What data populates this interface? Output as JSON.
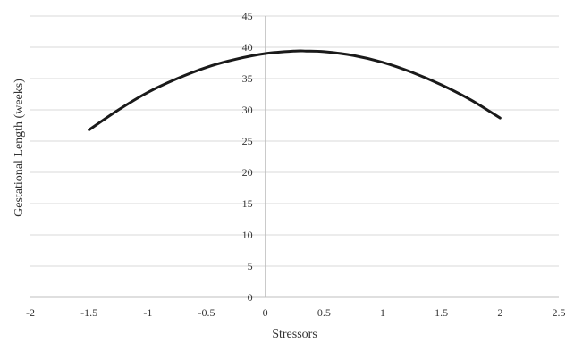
{
  "chart_data": {
    "type": "line",
    "title": "",
    "xlabel": "Stressors",
    "ylabel": "Gestational Length (weeks)",
    "xlim": [
      -2,
      2.5
    ],
    "ylim": [
      0,
      45
    ],
    "x_ticks": [
      "-2",
      "-1.5",
      "-1",
      "-0.5",
      "0",
      "0.5",
      "1",
      "1.5",
      "2",
      "2.5"
    ],
    "y_ticks": [
      "0",
      "5",
      "10",
      "15",
      "20",
      "25",
      "30",
      "35",
      "40",
      "45"
    ],
    "grid": "horizontal",
    "legend": "none",
    "series": [
      {
        "color": "#1a1a1a",
        "x": [
          -1.5,
          -1.25,
          -1.0,
          -0.75,
          -0.5,
          -0.25,
          0.0,
          0.25,
          0.35,
          0.5,
          0.75,
          1.0,
          1.25,
          1.5,
          1.75,
          2.0
        ],
        "y": [
          26.8,
          30.0,
          32.8,
          35.0,
          36.8,
          38.1,
          39.0,
          39.4,
          39.4,
          39.3,
          38.7,
          37.6,
          36.0,
          34.0,
          31.6,
          28.7
        ]
      }
    ]
  }
}
